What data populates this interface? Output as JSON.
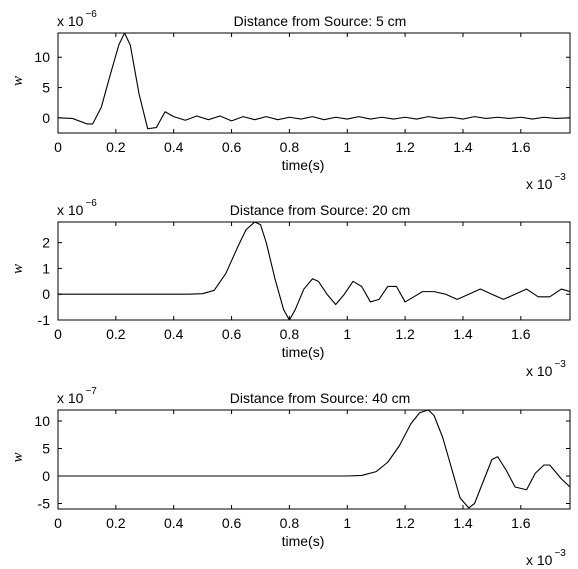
{
  "chart_data": [
    {
      "type": "line",
      "title": "Distance from Source: 5 cm",
      "xlabel": "time(s)",
      "ylabel": "w",
      "x_multiplier": {
        "base": "x 10",
        "exp": "−3"
      },
      "y_multiplier": {
        "base": "x 10",
        "exp": "−6"
      },
      "xlim": [
        0,
        1.77
      ],
      "ylim": [
        -2.5,
        14
      ],
      "xticks": [
        0,
        0.2,
        0.4,
        0.6,
        0.8,
        1,
        1.2,
        1.4,
        1.6
      ],
      "xtick_labels": [
        "0",
        "0.2",
        "0.4",
        "0.6",
        "0.8",
        "1",
        "1.2",
        "1.4",
        "1.6"
      ],
      "yticks": [
        0,
        5,
        10
      ],
      "ytick_labels": [
        "0",
        "5",
        "10"
      ],
      "grid": false,
      "series": [
        {
          "x": [
            0,
            0.05,
            0.1,
            0.12,
            0.15,
            0.18,
            0.21,
            0.23,
            0.25,
            0.28,
            0.31,
            0.34,
            0.37,
            0.4,
            0.44,
            0.48,
            0.52,
            0.56,
            0.6,
            0.64,
            0.68,
            0.72,
            0.76,
            0.8,
            0.84,
            0.88,
            0.92,
            0.96,
            1.0,
            1.04,
            1.08,
            1.12,
            1.16,
            1.2,
            1.24,
            1.28,
            1.32,
            1.36,
            1.4,
            1.44,
            1.48,
            1.52,
            1.56,
            1.6,
            1.64,
            1.68,
            1.72,
            1.77
          ],
          "y": [
            0,
            -0.1,
            -1.0,
            -1.0,
            1.8,
            7.0,
            12.0,
            14.0,
            12.0,
            4.0,
            -1.8,
            -1.6,
            1.0,
            0.2,
            -0.4,
            0.3,
            -0.3,
            0.3,
            -0.5,
            0.2,
            -0.3,
            0.2,
            -0.3,
            0.1,
            -0.2,
            0.2,
            -0.3,
            0.1,
            -0.2,
            0.2,
            -0.2,
            0.1,
            -0.2,
            0.1,
            -0.2,
            0.2,
            -0.1,
            0.1,
            -0.2,
            0.2,
            -0.1,
            0.1,
            -0.1,
            0.1,
            -0.2,
            0.1,
            -0.1,
            0
          ]
        }
      ]
    },
    {
      "type": "line",
      "title": "Distance from Source: 20 cm",
      "xlabel": "time(s)",
      "ylabel": "w",
      "x_multiplier": {
        "base": "x 10",
        "exp": "−3"
      },
      "y_multiplier": {
        "base": "x 10",
        "exp": "−6"
      },
      "xlim": [
        0,
        1.77
      ],
      "ylim": [
        -1,
        2.8
      ],
      "xticks": [
        0,
        0.2,
        0.4,
        0.6,
        0.8,
        1,
        1.2,
        1.4,
        1.6
      ],
      "xtick_labels": [
        "0",
        "0.2",
        "0.4",
        "0.6",
        "0.8",
        "1",
        "1.2",
        "1.4",
        "1.6"
      ],
      "yticks": [
        -1,
        0,
        1,
        2
      ],
      "ytick_labels": [
        "-1",
        "0",
        "1",
        "2"
      ],
      "grid": false,
      "series": [
        {
          "x": [
            0,
            0.45,
            0.5,
            0.54,
            0.58,
            0.62,
            0.65,
            0.68,
            0.7,
            0.72,
            0.75,
            0.78,
            0.8,
            0.82,
            0.85,
            0.88,
            0.9,
            0.93,
            0.96,
            0.99,
            1.02,
            1.05,
            1.08,
            1.11,
            1.14,
            1.17,
            1.2,
            1.23,
            1.26,
            1.3,
            1.34,
            1.38,
            1.42,
            1.46,
            1.5,
            1.54,
            1.58,
            1.62,
            1.66,
            1.7,
            1.74,
            1.77
          ],
          "y": [
            0,
            0,
            0.02,
            0.15,
            0.8,
            1.8,
            2.5,
            2.8,
            2.7,
            2.0,
            0.6,
            -0.6,
            -1.0,
            -0.6,
            0.2,
            0.6,
            0.5,
            0.0,
            -0.4,
            0.0,
            0.5,
            0.3,
            -0.3,
            -0.2,
            0.3,
            0.3,
            -0.3,
            -0.1,
            0.1,
            0.1,
            0.0,
            -0.2,
            0.0,
            0.2,
            0.0,
            -0.2,
            0.0,
            0.2,
            -0.1,
            -0.1,
            0.2,
            0.1
          ]
        }
      ]
    },
    {
      "type": "line",
      "title": "Distance from Source: 40 cm",
      "xlabel": "time(s)",
      "ylabel": "w",
      "x_multiplier": {
        "base": "x 10",
        "exp": "−3"
      },
      "y_multiplier": {
        "base": "x 10",
        "exp": "−7"
      },
      "xlim": [
        0,
        1.77
      ],
      "ylim": [
        -6,
        12
      ],
      "xticks": [
        0,
        0.2,
        0.4,
        0.6,
        0.8,
        1,
        1.2,
        1.4,
        1.6
      ],
      "xtick_labels": [
        "0",
        "0.2",
        "0.4",
        "0.6",
        "0.8",
        "1",
        "1.2",
        "1.4",
        "1.6"
      ],
      "yticks": [
        -5,
        0,
        5,
        10
      ],
      "ytick_labels": [
        "-5",
        "0",
        "5",
        "10"
      ],
      "grid": false,
      "series": [
        {
          "x": [
            0,
            1.0,
            1.05,
            1.1,
            1.14,
            1.18,
            1.22,
            1.25,
            1.28,
            1.3,
            1.33,
            1.36,
            1.39,
            1.42,
            1.44,
            1.47,
            1.5,
            1.52,
            1.55,
            1.58,
            1.62,
            1.65,
            1.68,
            1.7,
            1.74,
            1.77
          ],
          "y": [
            0,
            0,
            0.1,
            0.8,
            2.5,
            5.5,
            9.5,
            11.5,
            12.0,
            11.0,
            7.0,
            1.5,
            -4.0,
            -5.8,
            -5.0,
            -1.0,
            3.0,
            3.5,
            1.0,
            -2.0,
            -2.5,
            0.5,
            2.0,
            2.0,
            -0.5,
            -2.0
          ]
        }
      ]
    }
  ]
}
